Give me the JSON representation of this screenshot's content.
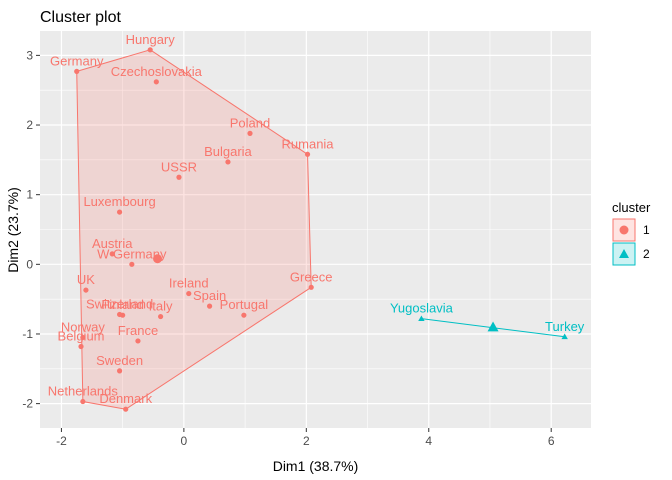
{
  "chart_data": {
    "type": "scatter",
    "title": "Cluster plot",
    "xlabel": "Dim1 (38.7%)",
    "ylabel": "Dim2 (23.7%)",
    "xlim": [
      -2.35,
      6.65
    ],
    "ylim": [
      -2.35,
      3.35
    ],
    "x_ticks": [
      -2,
      0,
      2,
      4,
      6
    ],
    "y_ticks": [
      -2,
      -1,
      0,
      1,
      2,
      3
    ],
    "grid": true,
    "legend": {
      "title": "cluster",
      "position": "right",
      "entries": [
        "1",
        "2"
      ]
    },
    "colors": {
      "1": "#F8766D",
      "2": "#00BFC4"
    },
    "clusters": [
      {
        "name": "1",
        "center": [
          -0.43,
          0.08
        ],
        "hull": [
          "Hungary",
          "Rumania",
          "Greece",
          "Denmark",
          "Netherlands",
          "Germany"
        ],
        "points": [
          {
            "label": "Hungary",
            "x": -0.55,
            "y": 3.08
          },
          {
            "label": "Germany",
            "x": -1.75,
            "y": 2.77
          },
          {
            "label": "Czechoslovakia",
            "x": -0.45,
            "y": 2.62
          },
          {
            "label": "Poland",
            "x": 1.08,
            "y": 1.88
          },
          {
            "label": "Rumania",
            "x": 2.02,
            "y": 1.58
          },
          {
            "label": "Bulgaria",
            "x": 0.72,
            "y": 1.47
          },
          {
            "label": "USSR",
            "x": -0.08,
            "y": 1.25
          },
          {
            "label": "Luxembourg",
            "x": -1.05,
            "y": 0.75
          },
          {
            "label": "Austria",
            "x": -1.17,
            "y": 0.15
          },
          {
            "label": "W Germany",
            "x": -0.85,
            "y": 0.0
          },
          {
            "label": "Greece",
            "x": 2.08,
            "y": -0.33
          },
          {
            "label": "UK",
            "x": -1.6,
            "y": -0.37
          },
          {
            "label": "Ireland",
            "x": 0.08,
            "y": -0.42
          },
          {
            "label": "Spain",
            "x": 0.42,
            "y": -0.6
          },
          {
            "label": "Portugal",
            "x": 0.98,
            "y": -0.73
          },
          {
            "label": "Switzerland",
            "x": -1.05,
            "y": -0.72
          },
          {
            "label": "Finland",
            "x": -1.0,
            "y": -0.73
          },
          {
            "label": "Italy",
            "x": -0.38,
            "y": -0.75
          },
          {
            "label": "France",
            "x": -0.75,
            "y": -1.1
          },
          {
            "label": "Norway",
            "x": -1.65,
            "y": -1.05
          },
          {
            "label": "Belgium",
            "x": -1.68,
            "y": -1.18
          },
          {
            "label": "Sweden",
            "x": -1.05,
            "y": -1.53
          },
          {
            "label": "Netherlands",
            "x": -1.65,
            "y": -1.97
          },
          {
            "label": "Denmark",
            "x": -0.95,
            "y": -2.08
          }
        ]
      },
      {
        "name": "2",
        "center": [
          5.05,
          -0.9
        ],
        "hull": [
          "Yugoslavia",
          "Turkey"
        ],
        "points": [
          {
            "label": "Yugoslavia",
            "x": 3.88,
            "y": -0.78
          },
          {
            "label": "Turkey",
            "x": 6.22,
            "y": -1.04
          }
        ]
      }
    ]
  }
}
